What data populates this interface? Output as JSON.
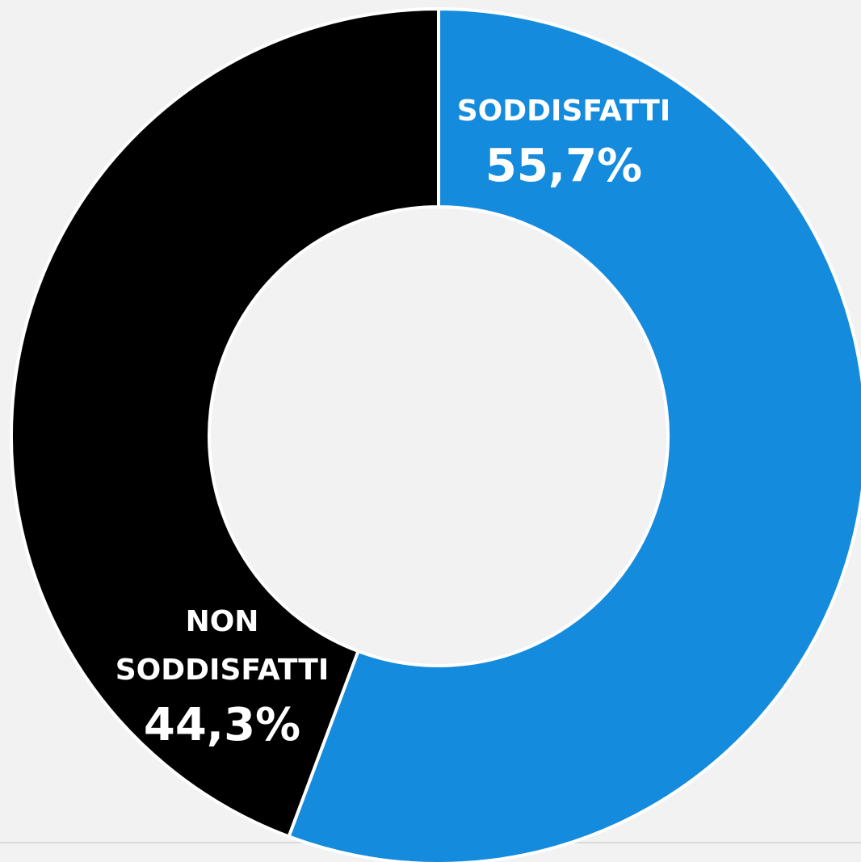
{
  "chart_data": {
    "type": "donut",
    "categories": [
      "SODDISFATTI",
      "NON SODDISFATTI"
    ],
    "values": [
      55.7,
      44.3
    ],
    "value_labels": [
      "55,7%",
      "44,3%"
    ],
    "colors": [
      "#148bdc",
      "#000000"
    ]
  }
}
